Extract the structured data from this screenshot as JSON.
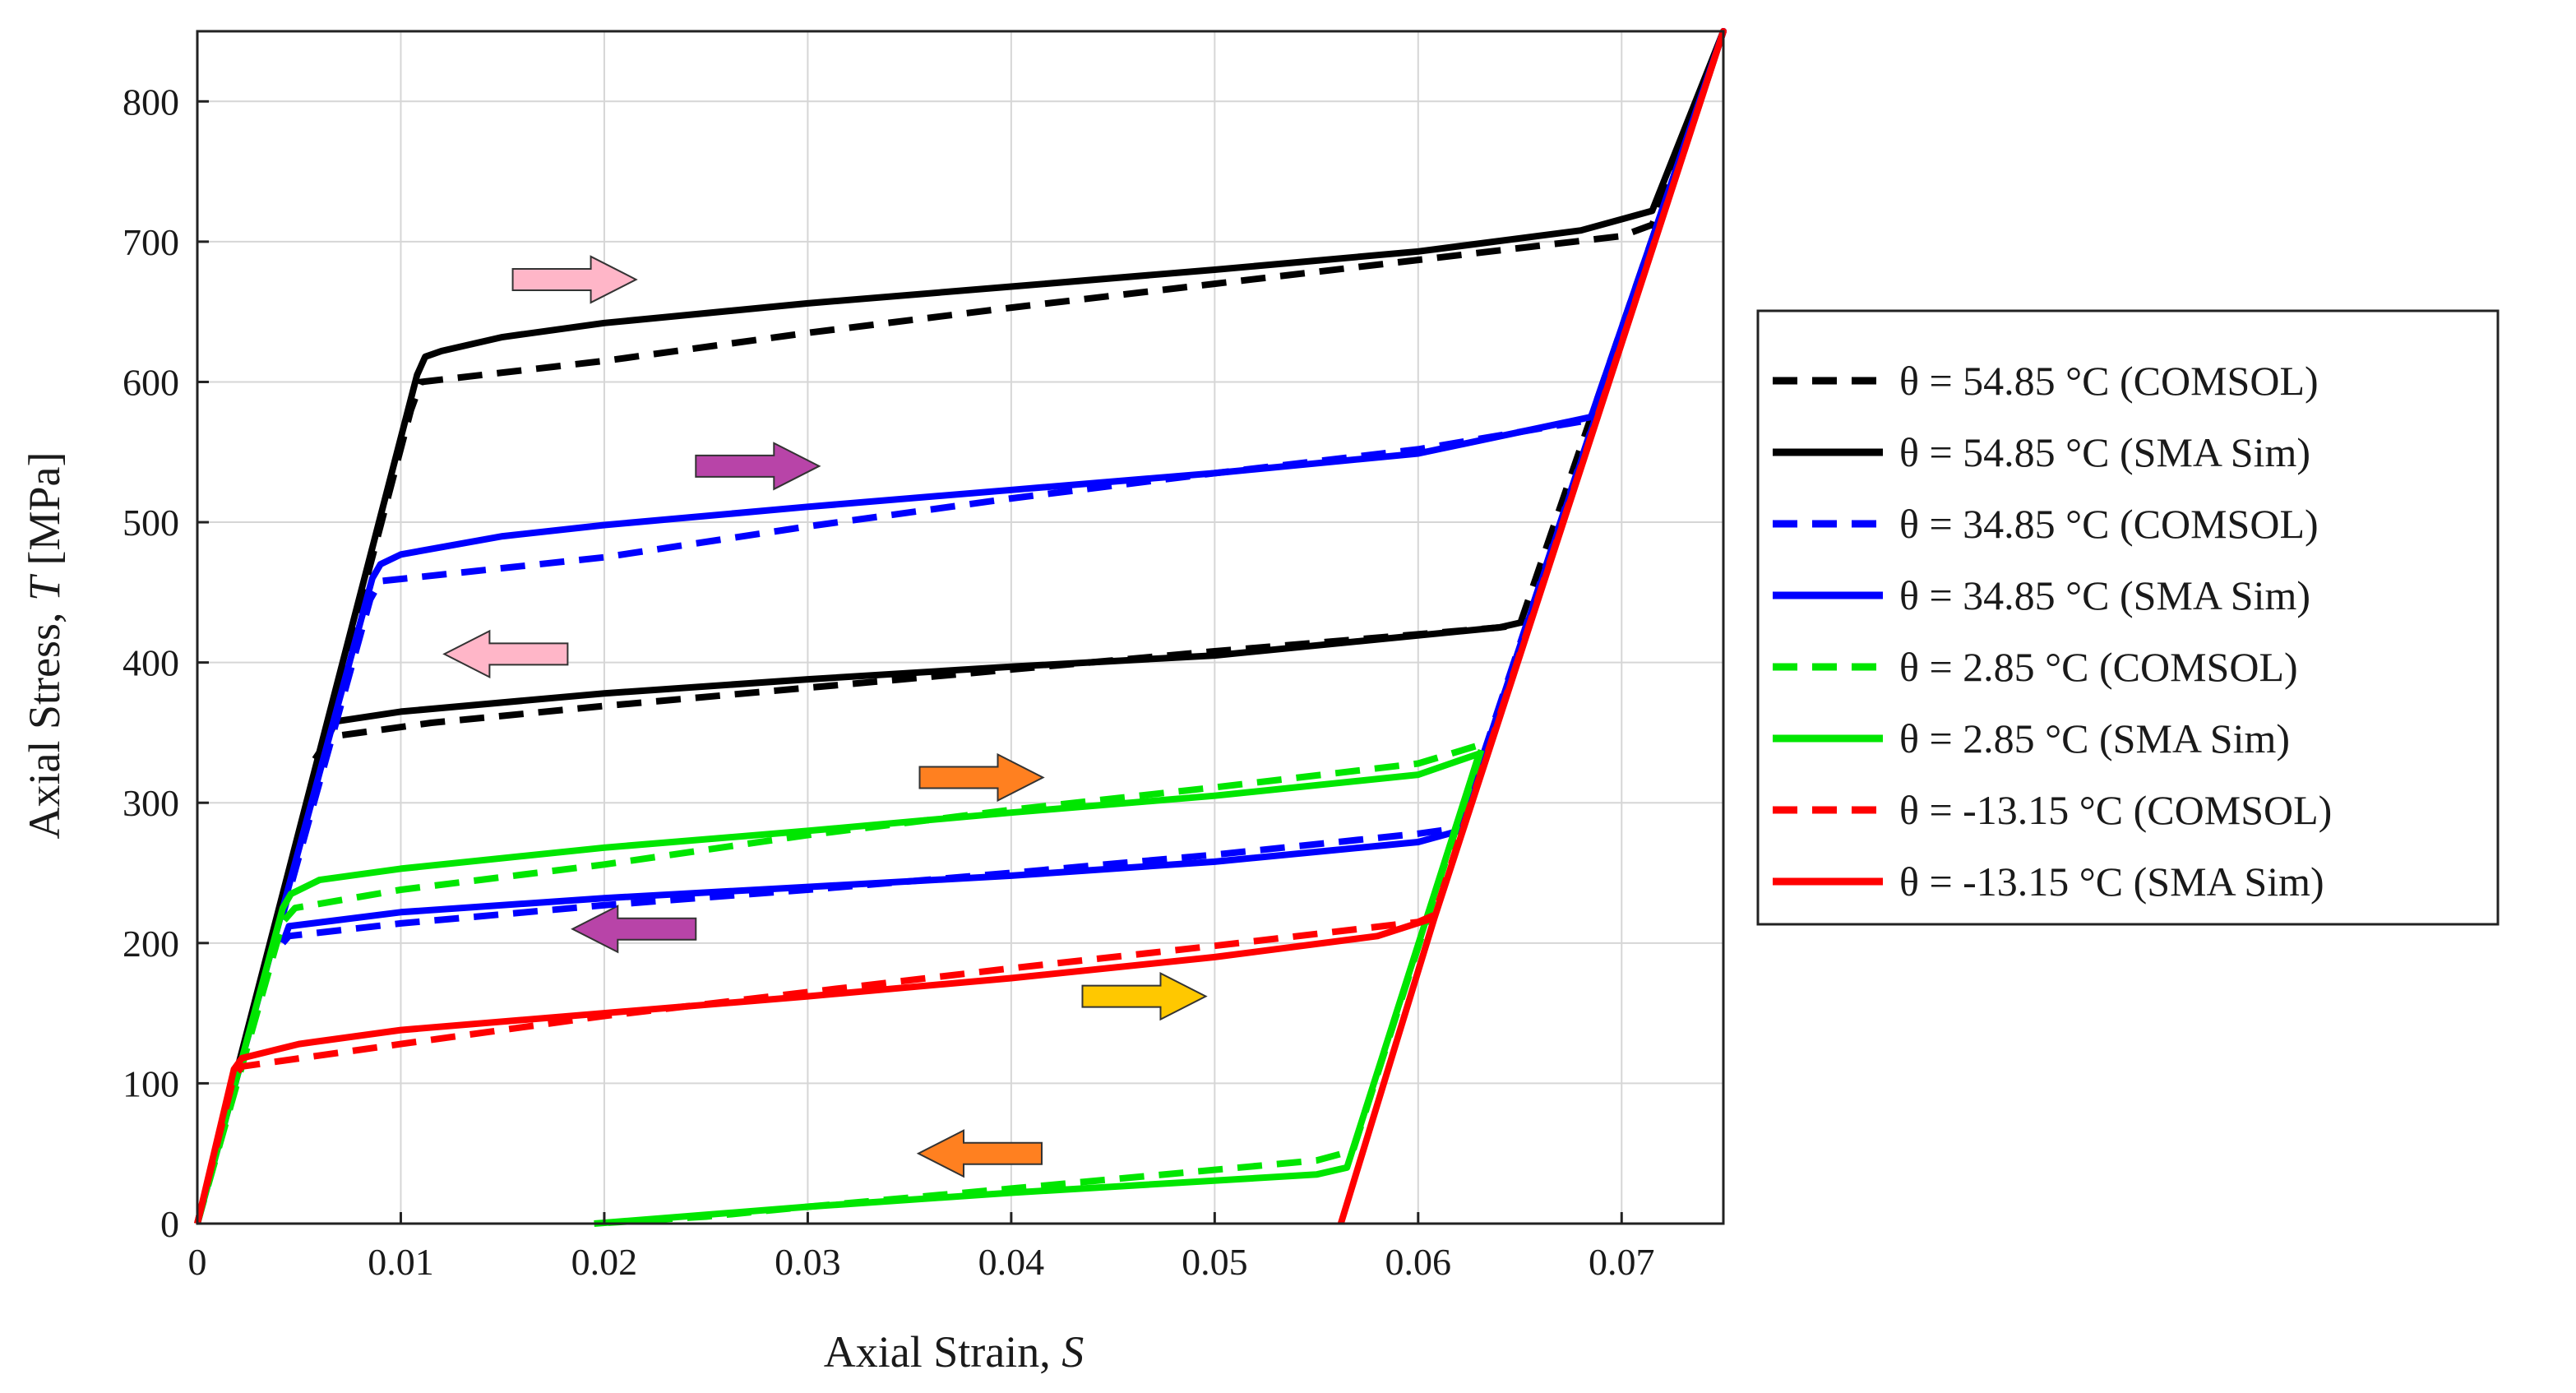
{
  "chart_data": {
    "type": "line",
    "xlabel": "Axial Strain, ",
    "xlabel_symbol": "S",
    "ylabel": "Axial Stress, ",
    "ylabel_symbol": "T",
    "ylabel_unit": " [MPa]",
    "xlim": [
      0,
      0.075
    ],
    "ylim": [
      0,
      850
    ],
    "x_ticks": [
      0,
      0.01,
      0.02,
      0.03,
      0.04,
      0.05,
      0.06,
      0.07
    ],
    "x_tick_labels": [
      "0",
      "0.01",
      "0.02",
      "0.03",
      "0.04",
      "0.05",
      "0.06",
      "0.07"
    ],
    "y_ticks": [
      0,
      100,
      200,
      300,
      400,
      500,
      600,
      700,
      800
    ],
    "y_tick_labels": [
      "0",
      "100",
      "200",
      "300",
      "400",
      "500",
      "600",
      "700",
      "800"
    ],
    "grid": true,
    "legend_position": "outside-right",
    "series": [
      {
        "name": "θ = 54.85  °C (COMSOL)",
        "color": "#000000",
        "dash": true,
        "x": [
          0,
          0.0105,
          0.011,
          0.02,
          0.03,
          0.04,
          0.05,
          0.06,
          0.07,
          0.0715,
          0.075,
          0.065,
          0.064,
          0.05,
          0.04,
          0.03,
          0.02,
          0.0115,
          0.0065,
          0.0055
        ],
        "y": [
          0,
          580,
          600,
          615,
          635,
          653,
          670,
          687,
          704,
          712,
          850,
          427,
          425,
          408,
          395,
          382,
          369,
          357,
          347,
          325
        ]
      },
      {
        "name": "θ = 54.85  °C (SMA Sim)",
        "color": "#000000",
        "dash": false,
        "x": [
          0,
          0.0108,
          0.0112,
          0.012,
          0.015,
          0.02,
          0.03,
          0.04,
          0.05,
          0.06,
          0.068,
          0.0715,
          0.075,
          0.0655,
          0.064,
          0.05,
          0.04,
          0.03,
          0.02,
          0.01,
          0.0068,
          0.0062
        ],
        "y": [
          0,
          605,
          618,
          622,
          632,
          642,
          656,
          668,
          680,
          693,
          708,
          722,
          850,
          430,
          425,
          405,
          397,
          388,
          378,
          365,
          358,
          340
        ]
      },
      {
        "name": "θ = 34.85  °C (COMSOL)",
        "color": "#0000ff",
        "dash": true,
        "x": [
          0,
          0.0085,
          0.009,
          0.02,
          0.03,
          0.04,
          0.05,
          0.06,
          0.0685,
          0.075,
          0.062,
          0.06,
          0.05,
          0.04,
          0.03,
          0.02,
          0.01,
          0.0045,
          0.0042
        ],
        "y": [
          0,
          445,
          458,
          475,
          497,
          517,
          535,
          552,
          573,
          850,
          282,
          278,
          263,
          250,
          238,
          227,
          214,
          205,
          200
        ]
      },
      {
        "name": "θ = 34.85  °C (SMA Sim)",
        "color": "#0000ff",
        "dash": false,
        "x": [
          0,
          0.0086,
          0.009,
          0.01,
          0.015,
          0.02,
          0.03,
          0.04,
          0.05,
          0.06,
          0.0685,
          0.075,
          0.062,
          0.06,
          0.05,
          0.04,
          0.03,
          0.02,
          0.01,
          0.0045,
          0.0042
        ],
        "y": [
          0,
          460,
          470,
          477,
          490,
          498,
          511,
          523,
          535,
          549,
          575,
          850,
          280,
          272,
          258,
          248,
          240,
          232,
          222,
          212,
          200
        ]
      },
      {
        "name": "θ = 2.85  °C (COMSOL)",
        "color": "#00e600",
        "dash": true,
        "x": [
          0,
          0.0042,
          0.0048,
          0.01,
          0.02,
          0.03,
          0.04,
          0.05,
          0.06,
          0.0632,
          0.0568,
          0.055,
          0.04,
          0.03,
          0.025,
          0.0195
        ],
        "y": [
          0,
          215,
          225,
          238,
          256,
          277,
          295,
          311,
          328,
          342,
          52,
          45,
          25,
          12,
          5,
          0
        ]
      },
      {
        "name": "θ = 2.85  °C (SMA Sim)",
        "color": "#00e600",
        "dash": false,
        "x": [
          0,
          0.0042,
          0.0046,
          0.006,
          0.01,
          0.02,
          0.03,
          0.04,
          0.05,
          0.06,
          0.063,
          0.0565,
          0.055,
          0.04,
          0.03,
          0.0195
        ],
        "y": [
          0,
          225,
          235,
          245,
          253,
          268,
          280,
          293,
          305,
          320,
          335,
          40,
          35,
          22,
          12,
          0
        ]
      },
      {
        "name": "θ = -13.15  °C (COMSOL)",
        "color": "#ff0000",
        "dash": true,
        "x": [
          0,
          0.0018,
          0.0022,
          0.01,
          0.02,
          0.03,
          0.04,
          0.05,
          0.06,
          0.0608,
          0.075
        ],
        "y": [
          0,
          105,
          112,
          128,
          148,
          165,
          182,
          198,
          215,
          220,
          850
        ]
      },
      {
        "name": "θ = -13.15  °C (SMA Sim)",
        "color": "#ff0000",
        "dash": false,
        "x": [
          0,
          0.0018,
          0.0022,
          0.005,
          0.01,
          0.02,
          0.03,
          0.04,
          0.05,
          0.058,
          0.0608,
          0.075,
          0.0608,
          0.0562
        ],
        "y": [
          0,
          110,
          118,
          128,
          138,
          150,
          162,
          175,
          190,
          205,
          218,
          850,
          218,
          0
        ]
      }
    ],
    "arrows": [
      {
        "x": 0.0155,
        "y": 673,
        "dir": "right",
        "color": "#ffb6c8"
      },
      {
        "x": 0.0245,
        "y": 540,
        "dir": "right",
        "color": "#b844a8"
      },
      {
        "x": 0.0182,
        "y": 406,
        "dir": "left",
        "color": "#ffb6c8"
      },
      {
        "x": 0.0355,
        "y": 318,
        "dir": "right",
        "color": "#ff8020"
      },
      {
        "x": 0.0245,
        "y": 210,
        "dir": "left",
        "color": "#b844a8"
      },
      {
        "x": 0.0435,
        "y": 162,
        "dir": "right",
        "color": "#ffc800"
      },
      {
        "x": 0.0415,
        "y": 50,
        "dir": "left",
        "color": "#ff8020"
      }
    ]
  }
}
